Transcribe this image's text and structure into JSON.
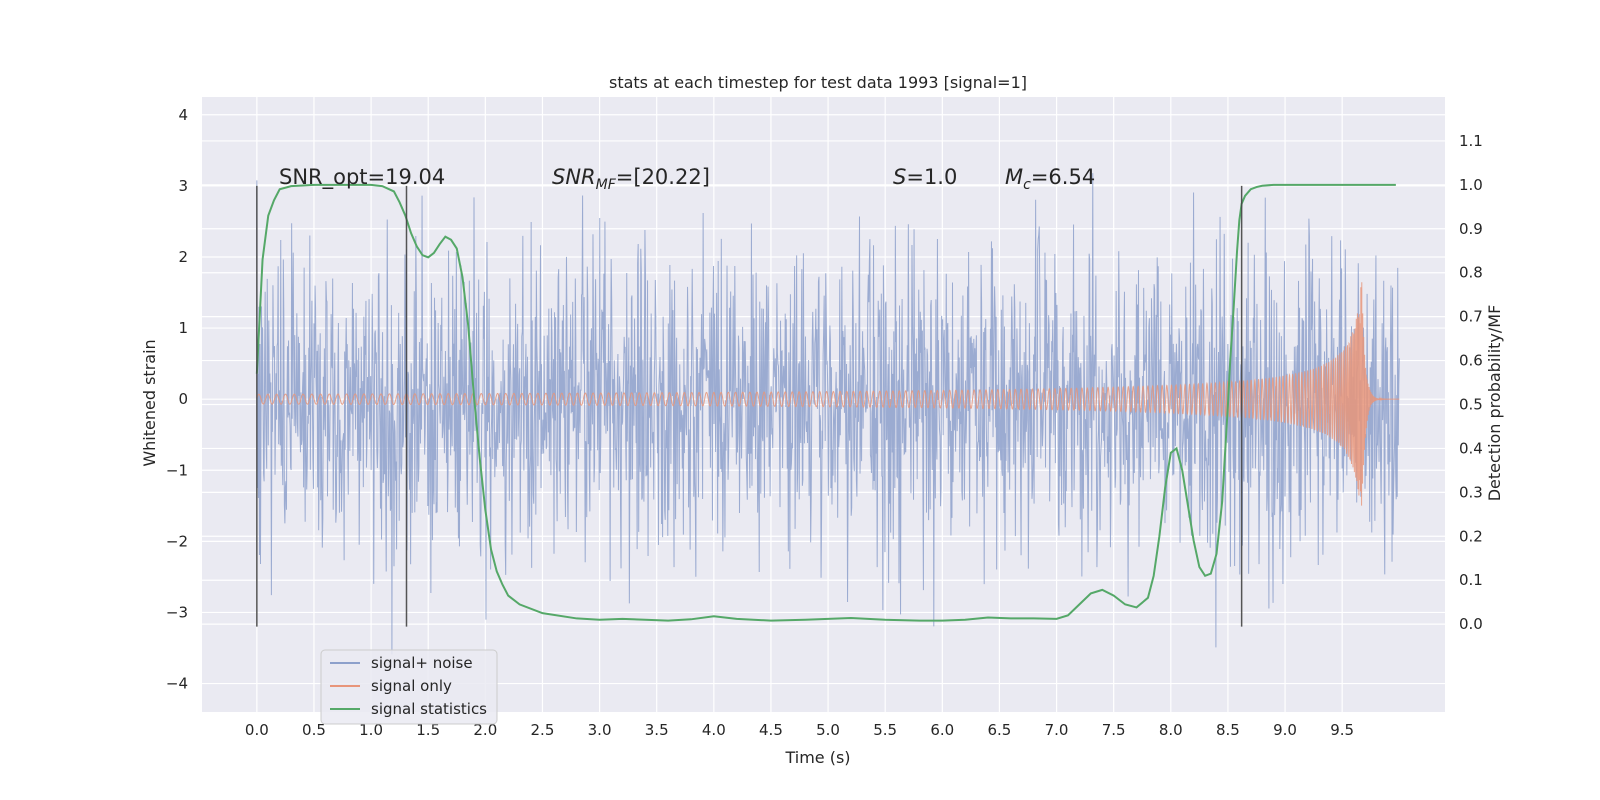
{
  "chart_data": {
    "type": "line",
    "title": "stats at each timestep for test data 1993 [signal=1]",
    "xlabel": "Time (s)",
    "ylabel": "Whitened strain",
    "ylabel_right": "Detection probability/MF",
    "xlim": [
      -0.48,
      10.4
    ],
    "ylim": [
      -4.4,
      4.25
    ],
    "ylim_right": [
      -0.2,
      1.2
    ],
    "x_ticks": [
      "0.0",
      "0.5",
      "1.0",
      "1.5",
      "2.0",
      "2.5",
      "3.0",
      "3.5",
      "4.0",
      "4.5",
      "5.0",
      "5.5",
      "6.0",
      "6.5",
      "7.0",
      "7.5",
      "8.0",
      "8.5",
      "9.0",
      "9.5"
    ],
    "y_ticks": [
      "4",
      "3",
      "2",
      "1",
      "0",
      "−1",
      "−2",
      "−3",
      "−4"
    ],
    "y_ticks_right": [
      "1.1",
      "1.0",
      "0.9",
      "0.8",
      "0.7",
      "0.6",
      "0.5",
      "0.4",
      "0.3",
      "0.2",
      "0.1",
      "0.0"
    ],
    "grid": true,
    "legend_position": "bottom-left",
    "annotations": {
      "snr_opt": "SNR_opt=19.04",
      "snr_mf_main": "SNR",
      "snr_mf_sub": "MF",
      "snr_mf_value": "=[20.22]",
      "s_symbol": "S",
      "s_value": "=1.0",
      "mc_symbol": "M",
      "mc_sub": "c",
      "mc_value": "=6.54"
    },
    "vertical_markers_s": [
      0.0,
      1.31,
      8.62
    ],
    "series": [
      {
        "name": "signal+ noise",
        "color": "#8da0cb",
        "kind": "noise",
        "sigma": 1.05,
        "x_start": 0.0,
        "x_end": 10.0
      },
      {
        "name": "signal only",
        "color": "#e8957a",
        "kind": "chirp",
        "t_coalescence": 9.67,
        "peak_amplitude": 1.75,
        "x_start": 0.0,
        "x_end": 10.0
      },
      {
        "name": "signal statistics",
        "color": "#55a868",
        "kind": "curve",
        "axis": "right",
        "x": [
          0.0,
          0.05,
          0.1,
          0.15,
          0.2,
          0.3,
          0.5,
          0.8,
          1.0,
          1.1,
          1.2,
          1.25,
          1.3,
          1.35,
          1.4,
          1.45,
          1.5,
          1.55,
          1.6,
          1.65,
          1.7,
          1.75,
          1.8,
          1.85,
          1.9,
          1.95,
          2.0,
          2.05,
          2.1,
          2.15,
          2.2,
          2.3,
          2.5,
          2.8,
          3.0,
          3.2,
          3.4,
          3.6,
          3.8,
          4.0,
          4.2,
          4.5,
          4.8,
          5.0,
          5.2,
          5.5,
          5.8,
          6.0,
          6.2,
          6.4,
          6.6,
          6.8,
          7.0,
          7.1,
          7.2,
          7.3,
          7.4,
          7.5,
          7.6,
          7.7,
          7.8,
          7.85,
          7.9,
          7.95,
          8.0,
          8.05,
          8.1,
          8.15,
          8.2,
          8.25,
          8.3,
          8.35,
          8.4,
          8.45,
          8.5,
          8.52,
          8.55,
          8.58,
          8.6,
          8.62,
          8.65,
          8.7,
          8.75,
          8.8,
          8.9,
          9.0,
          9.5,
          9.97
        ],
        "y": [
          0.57,
          0.83,
          0.93,
          0.965,
          0.99,
          0.997,
          1.0,
          1.0,
          1.0,
          0.997,
          0.985,
          0.96,
          0.93,
          0.89,
          0.86,
          0.84,
          0.835,
          0.845,
          0.865,
          0.882,
          0.875,
          0.855,
          0.79,
          0.68,
          0.52,
          0.38,
          0.26,
          0.17,
          0.12,
          0.09,
          0.065,
          0.045,
          0.025,
          0.013,
          0.01,
          0.012,
          0.01,
          0.008,
          0.011,
          0.018,
          0.012,
          0.008,
          0.01,
          0.012,
          0.014,
          0.01,
          0.008,
          0.008,
          0.01,
          0.015,
          0.013,
          0.013,
          0.012,
          0.02,
          0.045,
          0.07,
          0.078,
          0.065,
          0.045,
          0.038,
          0.06,
          0.11,
          0.2,
          0.31,
          0.39,
          0.4,
          0.35,
          0.27,
          0.19,
          0.13,
          0.11,
          0.115,
          0.16,
          0.28,
          0.5,
          0.6,
          0.72,
          0.85,
          0.92,
          0.957,
          0.975,
          0.99,
          0.995,
          0.998,
          1.0,
          1.0,
          1.0,
          1.0
        ]
      }
    ]
  }
}
